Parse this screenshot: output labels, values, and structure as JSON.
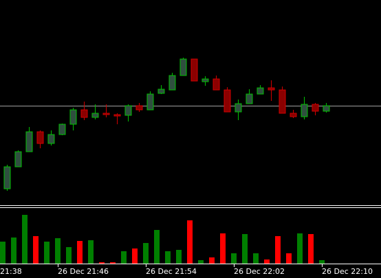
{
  "chart_data": {
    "type": "candlestick",
    "up_color": "#00c000",
    "up_fill": "#2f4f3f",
    "down_color": "#d00000",
    "down_fill": "#8b0000",
    "volume_up_color": "#008000",
    "volume_down_color": "#ff0000",
    "price_line_color": "#a0a0a0",
    "ylim": [
      0,
      300
    ],
    "volume_ylim": [
      0,
      81
    ],
    "price_line": 146,
    "xticks": [
      {
        "value": -3,
        "label": "21:38"
      },
      {
        "value": 5,
        "label": "26 Dec 21:46"
      },
      {
        "value": 13,
        "label": "26 Dec 21:54"
      },
      {
        "value": 21,
        "label": "26 Dec 22:02"
      },
      {
        "value": 29,
        "label": "26 Dec 22:10"
      }
    ],
    "open": [
      25,
      57,
      79,
      108,
      91,
      104,
      119,
      140,
      129,
      135,
      133,
      132,
      146,
      140,
      164,
      169,
      190,
      214,
      181,
      185,
      169,
      137,
      149,
      163,
      172,
      169,
      135,
      130,
      148,
      138
    ],
    "high": [
      60,
      81,
      115,
      110,
      110,
      120,
      143,
      152,
      148,
      148,
      135,
      148,
      150,
      167,
      176,
      194,
      216,
      214,
      189,
      190,
      173,
      155,
      170,
      176,
      183,
      174,
      140,
      159,
      150,
      150
    ],
    "low": [
      22,
      57,
      79,
      84,
      88,
      103,
      110,
      125,
      126,
      129,
      119,
      123,
      137,
      140,
      163,
      169,
      190,
      182,
      175,
      169,
      137,
      125,
      149,
      163,
      153,
      135,
      128,
      126,
      132,
      136
    ],
    "close": [
      57,
      79,
      108,
      91,
      104,
      119,
      140,
      129,
      135,
      133,
      131,
      146,
      140,
      163,
      170,
      190,
      214,
      182,
      185,
      169,
      137,
      149,
      163,
      172,
      169,
      135,
      130,
      148,
      138,
      146
    ],
    "volume": [
      32,
      38,
      71,
      40,
      32,
      37,
      24,
      33,
      34,
      2,
      2,
      18,
      22,
      30,
      49,
      18,
      20,
      63,
      5,
      9,
      44,
      15,
      43,
      15,
      6,
      40,
      15,
      44,
      43,
      5
    ]
  }
}
